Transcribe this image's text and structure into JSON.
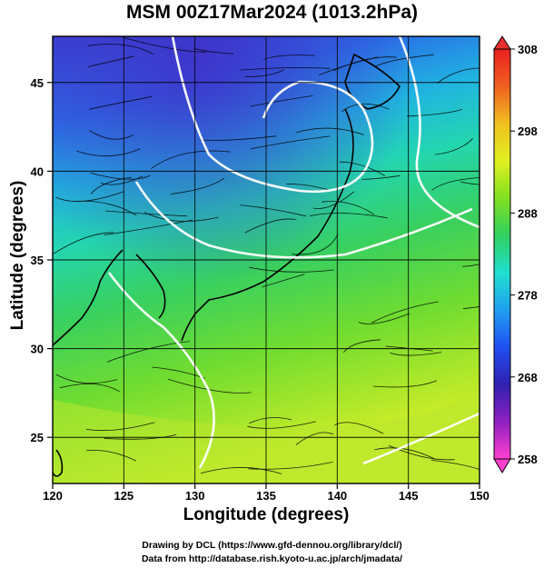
{
  "title": "MSM 00Z17Mar2024 (1013.2hPa)",
  "x_axis": {
    "label": "Longitude (degrees)",
    "range": [
      120,
      150
    ],
    "ticks": [
      120,
      125,
      130,
      135,
      140,
      145,
      150
    ]
  },
  "y_axis": {
    "label": "Latitude  (degrees)",
    "range": [
      22.4,
      47.6
    ],
    "ticks": [
      25,
      30,
      35,
      40,
      45
    ]
  },
  "colorbar": {
    "min": 258,
    "max": 308,
    "ticks": [
      258,
      268,
      278,
      288,
      298,
      308
    ],
    "stops": [
      "#ff40d0",
      "#9020c0",
      "#3020b0",
      "#2050f0",
      "#20a0f0",
      "#20e0d0",
      "#30d060",
      "#80e020",
      "#e0f020",
      "#f0c020",
      "#f06020",
      "#e82020"
    ]
  },
  "map": {
    "gridlines": true,
    "field": "temperature",
    "streamlines": "wind",
    "contours": "white"
  },
  "credits": {
    "line1": "Drawing by DCL (https://www.gfd-dennou.org/library/dcl/)",
    "line2": "Data from http://database.rish.kyoto-u.ac.jp/arch/jmadata/"
  }
}
